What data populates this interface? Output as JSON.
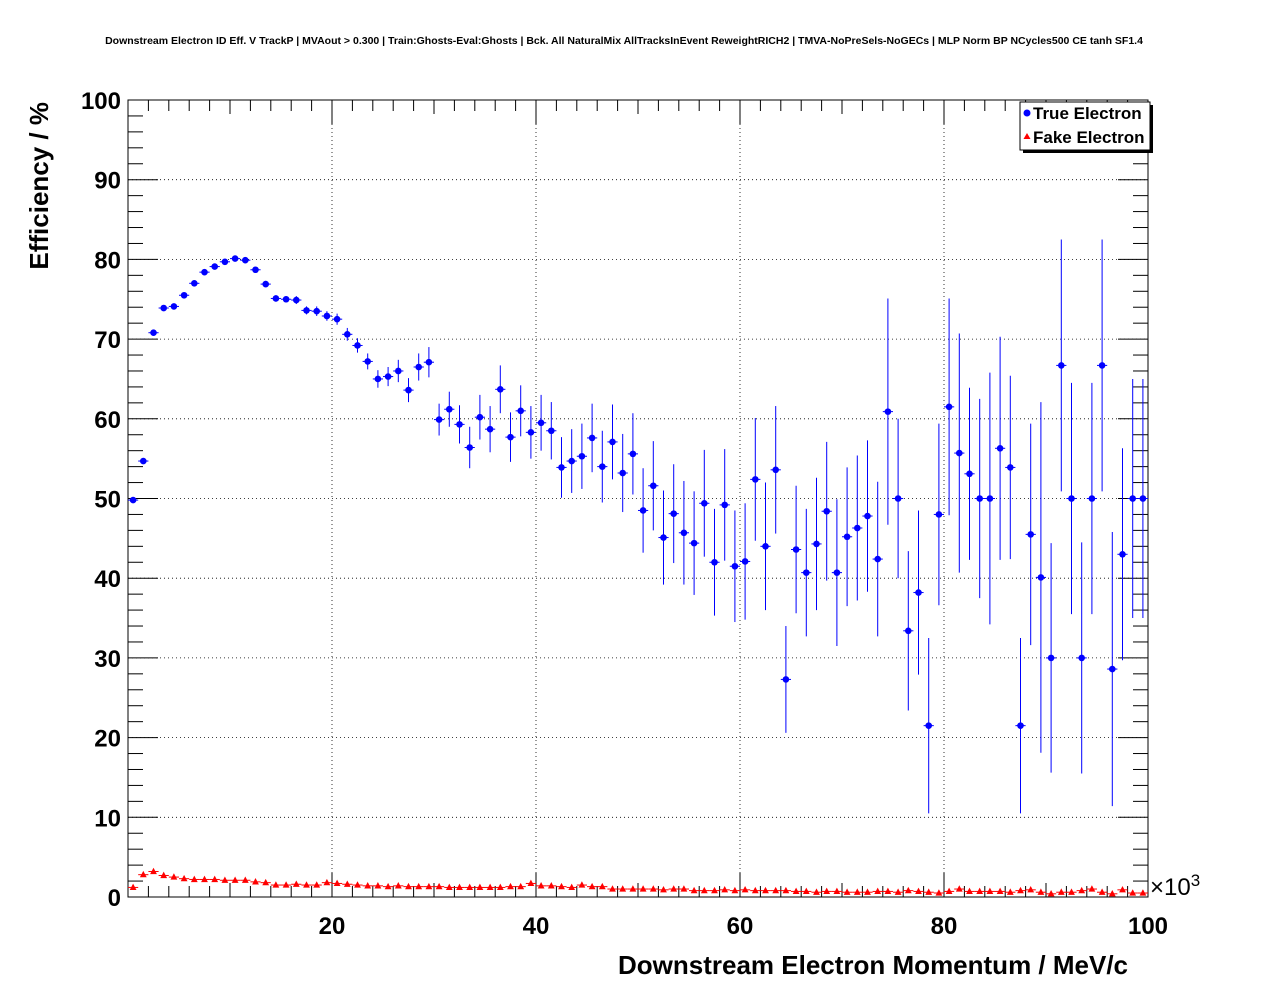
{
  "chart_data": {
    "type": "scatter",
    "title": "Downstream Electron ID Eff. V TrackP | MVAout > 0.300 | Train:Ghosts-Eval:Ghosts | Bck. All NaturalMix AllTracksInEvent ReweightRICH2 | TMVA-NoPreSels-NoGECs | MLP Norm BP NCycles500 CE tanh SF1.4",
    "xlabel": "Downstream Electron Momentum / MeV/c",
    "ylabel": "Efficiency / %",
    "x_exponent_label": "×10",
    "x_exponent_power": "3",
    "xlim": [
      0,
      100
    ],
    "ylim": [
      0,
      100
    ],
    "x_ticks": [
      20,
      40,
      60,
      80,
      100
    ],
    "y_ticks": [
      0,
      10,
      20,
      30,
      40,
      50,
      60,
      70,
      80,
      90,
      100
    ],
    "x_tick_labels": [
      "20",
      "40",
      "60",
      "80",
      "100"
    ],
    "y_tick_labels": [
      "0",
      "10",
      "20",
      "30",
      "40",
      "50",
      "60",
      "70",
      "80",
      "90",
      "100"
    ],
    "grid": true,
    "legend_position": "top-right",
    "series": [
      {
        "name": "True Electron",
        "color": "#0000ff",
        "marker": "circle",
        "x": [
          0.5,
          1.5,
          2.5,
          3.5,
          4.5,
          5.5,
          6.5,
          7.5,
          8.5,
          9.5,
          10.5,
          11.5,
          12.5,
          13.5,
          14.5,
          15.5,
          16.5,
          17.5,
          18.5,
          19.5,
          20.5,
          21.5,
          22.5,
          23.5,
          24.5,
          25.5,
          26.5,
          27.5,
          28.5,
          29.5,
          30.5,
          31.5,
          32.5,
          33.5,
          34.5,
          35.5,
          36.5,
          37.5,
          38.5,
          39.5,
          40.5,
          41.5,
          42.5,
          43.5,
          44.5,
          45.5,
          46.5,
          47.5,
          48.5,
          49.5,
          50.5,
          51.5,
          52.5,
          53.5,
          54.5,
          55.5,
          56.5,
          57.5,
          58.5,
          59.5,
          60.5,
          61.5,
          62.5,
          63.5,
          64.5,
          65.5,
          66.5,
          67.5,
          68.5,
          69.5,
          70.5,
          71.5,
          72.5,
          73.5,
          74.5,
          75.5,
          76.5,
          77.5,
          78.5,
          79.5,
          80.5,
          81.5,
          82.5,
          83.5,
          84.5,
          85.5,
          86.5,
          87.5,
          88.5,
          89.5,
          90.5,
          91.5,
          92.5,
          93.5,
          94.5,
          95.5,
          96.5,
          97.5,
          98.5,
          99.5
        ],
        "y": [
          49.8,
          54.7,
          70.8,
          73.9,
          74.1,
          75.5,
          77.0,
          78.4,
          79.1,
          79.7,
          80.1,
          79.9,
          78.7,
          76.9,
          75.1,
          75.0,
          74.9,
          73.6,
          73.5,
          72.9,
          72.5,
          70.6,
          69.2,
          67.2,
          65.0,
          65.3,
          66.0,
          63.6,
          66.5,
          67.1,
          59.9,
          61.2,
          59.3,
          56.4,
          60.2,
          58.7,
          63.7,
          57.7,
          61.0,
          58.3,
          59.5,
          58.5,
          53.9,
          54.7,
          55.3,
          57.6,
          54.0,
          57.1,
          53.2,
          55.6,
          48.5,
          51.6,
          45.1,
          48.1,
          45.7,
          44.4,
          49.4,
          42.0,
          49.2,
          41.5,
          42.1,
          52.4,
          44.0,
          53.6,
          27.3,
          43.6,
          40.7,
          44.3,
          48.4,
          40.7,
          45.2,
          46.3,
          47.8,
          42.4,
          60.9,
          50.0,
          33.4,
          38.2,
          21.5,
          48.0,
          61.5,
          55.7,
          53.1,
          50.0,
          50.0,
          56.3,
          53.9,
          21.5,
          45.5,
          40.1,
          30.0,
          66.7,
          50.0,
          30.0,
          50.0,
          66.7,
          28.6,
          43.0,
          50.0,
          50.0
        ],
        "y_err": [
          0.3,
          0.3,
          0.3,
          0.3,
          0.3,
          0.3,
          0.3,
          0.3,
          0.3,
          0.3,
          0.3,
          0.3,
          0.3,
          0.4,
          0.4,
          0.4,
          0.5,
          0.5,
          0.6,
          0.6,
          0.7,
          0.8,
          0.9,
          1.0,
          1.1,
          1.2,
          1.4,
          1.5,
          1.7,
          1.9,
          2.0,
          2.2,
          2.4,
          2.6,
          2.8,
          2.9,
          3.0,
          3.1,
          3.2,
          3.3,
          3.5,
          3.6,
          3.8,
          4.0,
          4.1,
          4.3,
          4.5,
          4.7,
          4.9,
          5.1,
          5.3,
          5.6,
          5.9,
          6.2,
          6.5,
          6.5,
          6.7,
          6.7,
          7.0,
          7.0,
          7.3,
          7.7,
          8.0,
          8.0,
          6.7,
          8.0,
          8.0,
          8.3,
          8.7,
          9.2,
          8.7,
          9.1,
          9.5,
          9.7,
          14.2,
          10.0,
          10.0,
          10.3,
          11.0,
          11.4,
          13.6,
          15.0,
          10.8,
          12.5,
          15.8,
          14.0,
          11.5,
          11.0,
          13.9,
          22.0,
          14.4,
          15.8,
          14.5,
          14.5,
          14.5,
          15.8,
          17.2,
          13.3,
          15.0,
          15.0
        ]
      },
      {
        "name": "Fake Electron",
        "color": "#ff0000",
        "marker": "triangle",
        "x": [
          0.5,
          1.5,
          2.5,
          3.5,
          4.5,
          5.5,
          6.5,
          7.5,
          8.5,
          9.5,
          10.5,
          11.5,
          12.5,
          13.5,
          14.5,
          15.5,
          16.5,
          17.5,
          18.5,
          19.5,
          20.5,
          21.5,
          22.5,
          23.5,
          24.5,
          25.5,
          26.5,
          27.5,
          28.5,
          29.5,
          30.5,
          31.5,
          32.5,
          33.5,
          34.5,
          35.5,
          36.5,
          37.5,
          38.5,
          39.5,
          40.5,
          41.5,
          42.5,
          43.5,
          44.5,
          45.5,
          46.5,
          47.5,
          48.5,
          49.5,
          50.5,
          51.5,
          52.5,
          53.5,
          54.5,
          55.5,
          56.5,
          57.5,
          58.5,
          59.5,
          60.5,
          61.5,
          62.5,
          63.5,
          64.5,
          65.5,
          66.5,
          67.5,
          68.5,
          69.5,
          70.5,
          71.5,
          72.5,
          73.5,
          74.5,
          75.5,
          76.5,
          77.5,
          78.5,
          79.5,
          80.5,
          81.5,
          82.5,
          83.5,
          84.5,
          85.5,
          86.5,
          87.5,
          88.5,
          89.5,
          90.5,
          91.5,
          92.5,
          93.5,
          94.5,
          95.5,
          96.5,
          97.5,
          98.5,
          99.5
        ],
        "y": [
          1.2,
          2.8,
          3.2,
          2.7,
          2.5,
          2.3,
          2.2,
          2.2,
          2.2,
          2.1,
          2.1,
          2.1,
          1.9,
          1.8,
          1.5,
          1.5,
          1.6,
          1.5,
          1.5,
          1.8,
          1.7,
          1.6,
          1.5,
          1.4,
          1.4,
          1.3,
          1.4,
          1.3,
          1.3,
          1.3,
          1.3,
          1.2,
          1.2,
          1.2,
          1.2,
          1.2,
          1.2,
          1.3,
          1.3,
          1.7,
          1.4,
          1.4,
          1.3,
          1.2,
          1.5,
          1.3,
          1.3,
          1.0,
          1.0,
          1.0,
          1.0,
          1.0,
          0.9,
          1.0,
          1.0,
          0.8,
          0.8,
          0.8,
          0.9,
          0.8,
          0.9,
          0.8,
          0.8,
          0.8,
          0.8,
          0.7,
          0.7,
          0.6,
          0.7,
          0.7,
          0.6,
          0.6,
          0.6,
          0.7,
          0.7,
          0.6,
          0.8,
          0.7,
          0.6,
          0.5,
          0.7,
          1.0,
          0.7,
          0.7,
          0.7,
          0.7,
          0.6,
          0.8,
          0.9,
          0.6,
          0.4,
          0.6,
          0.6,
          0.8,
          1.0,
          0.6,
          0.4,
          0.9,
          0.5,
          0.5
        ]
      }
    ]
  }
}
